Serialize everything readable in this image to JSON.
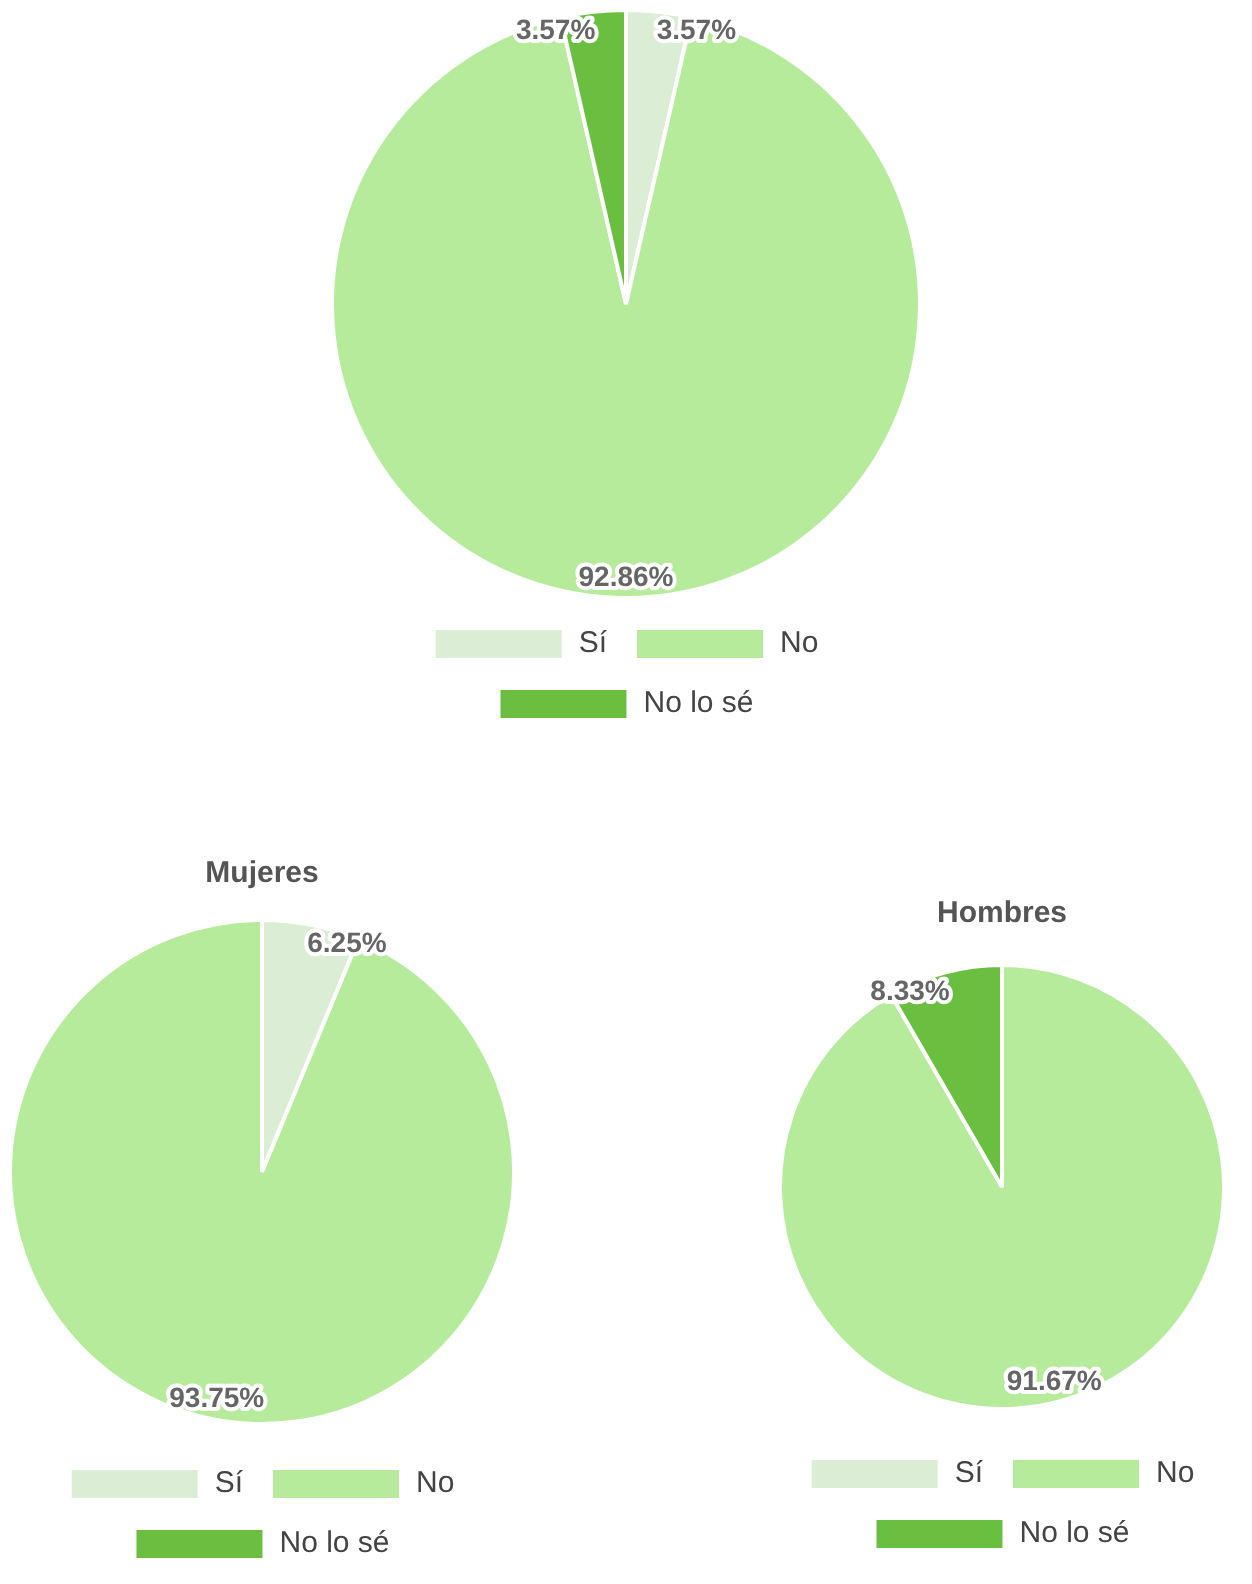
{
  "chart_data": [
    {
      "type": "pie",
      "categories": [
        "Sí",
        "No",
        "No lo sé"
      ],
      "values": [
        3.57,
        92.86,
        3.57
      ],
      "colors": [
        "#dcedd5",
        "#b7eb9c",
        "#6abf40"
      ],
      "value_labels": [
        "3.57%",
        "92.86%",
        "3.57%"
      ],
      "legend": "bottom"
    },
    {
      "type": "pie",
      "title": "Mujeres",
      "categories": [
        "Sí",
        "No",
        "No lo sé"
      ],
      "values": [
        6.25,
        93.75,
        0
      ],
      "colors": [
        "#dcedd5",
        "#b7eb9c",
        "#6abf40"
      ],
      "value_labels": [
        "6.25%",
        "93.75%",
        null
      ],
      "legend": "bottom"
    },
    {
      "type": "pie",
      "title": "Hombres",
      "categories": [
        "Sí",
        "No",
        "No lo sé"
      ],
      "values": [
        0,
        91.67,
        8.33
      ],
      "colors": [
        "#dcedd5",
        "#b7eb9c",
        "#6abf40"
      ],
      "value_labels": [
        null,
        "91.67%",
        "8.33%"
      ],
      "legend": "bottom"
    }
  ]
}
